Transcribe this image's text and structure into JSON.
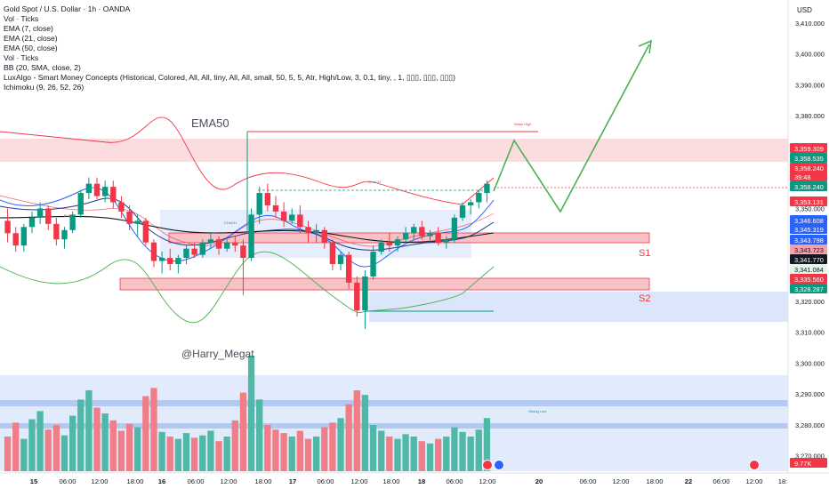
{
  "header": {
    "title": "Gold Spot / U.S. Dollar · 1h · OANDA",
    "indicators": [
      "Vol · Ticks",
      "EMA (7, close)",
      "EMA (21, close)",
      "EMA (50, close)",
      "Vol · Ticks",
      "BB (20, SMA, close, 2)",
      "LuxAlgo - Smart Money Concepts (Historical, Colored, All, All, tiny, All, All, small, 50, 5, 5, Atr, High/Low, 3, 0.1, tiny, , 1, ▯▯▯, ▯▯▯, ▯▯▯)",
      "Ichimoku (9, 26, 52, 26)"
    ]
  },
  "price_scale": {
    "currency": "USD",
    "ticks": [
      "3,410.000",
      "3,400.000",
      "3,390.000",
      "3,380.000",
      "3,370.000",
      "3,360.000",
      "3,350.000",
      "3,340.000",
      "3,330.000",
      "3,320.000",
      "3,310.000",
      "3,300.000",
      "3,290.000",
      "3,280.000",
      "3,270.000"
    ],
    "badges": [
      {
        "text": "3,359.309",
        "color": "#f23645"
      },
      {
        "text": "3,358.535",
        "color": "#089981"
      },
      {
        "text": "3,358.240",
        "color": "#f23645"
      },
      {
        "text": "39:48",
        "color": "#f23645"
      },
      {
        "text": "3,358.240",
        "color": "#089981"
      },
      {
        "text": "3,353.131",
        "color": "#f23645"
      },
      {
        "text": "3,346.608",
        "color": "#2962ff"
      },
      {
        "text": "3,345.319",
        "color": "#2962ff"
      },
      {
        "text": "3,343.798",
        "color": "#2962ff"
      },
      {
        "text": "3,343.723",
        "color": "#f7a0a8"
      },
      {
        "text": "3,341.770",
        "color": "#131722"
      },
      {
        "text": "3,341.084",
        "color": "#e4f5ea"
      },
      {
        "text": "3,335.560",
        "color": "#f23645"
      },
      {
        "text": "3,328.287",
        "color": "#089981"
      },
      {
        "text": "9.77K",
        "color": "#f23645"
      }
    ]
  },
  "time_axis": {
    "labels": [
      "15",
      "06:00",
      "12:00",
      "18:00",
      "16",
      "06:00",
      "12:00",
      "18:00",
      "17",
      "06:00",
      "12:00",
      "18:00",
      "18",
      "06:00",
      "12:00",
      "20",
      "06:00",
      "12:00",
      "18:00",
      "22",
      "06:00",
      "12:00",
      "18:"
    ]
  },
  "annotations": {
    "ema_label": "EMA50",
    "watermark": "@Harry_Megat",
    "s1": "S1",
    "s2": "S2",
    "weak_high": "Weak High",
    "strong_low": "Strong Low",
    "choch_1": "CHoCH",
    "choch_2": "CHoCH",
    "bos": "BOS"
  },
  "colors": {
    "up": "#089981",
    "down": "#f23645",
    "ema7": "#2962ff",
    "ema21": "#1e3a8a",
    "ema50": "#131722",
    "bb": "#f23645",
    "projection": "#4caf50",
    "zone_blue": "#dbe6fb",
    "zone_red": "#f7c1c5"
  },
  "chart_data": {
    "type": "candlestick",
    "symbol": "XAUUSD",
    "timeframe": "1h",
    "ylim": [
      3265,
      3418
    ],
    "candles": [
      [
        3346,
        3350,
        3339,
        3342
      ],
      [
        3342,
        3344,
        3336,
        3338
      ],
      [
        3338,
        3345,
        3336,
        3344
      ],
      [
        3344,
        3349,
        3342,
        3347
      ],
      [
        3347,
        3352,
        3345,
        3350
      ],
      [
        3350,
        3351,
        3343,
        3345
      ],
      [
        3345,
        3347,
        3338,
        3340
      ],
      [
        3340,
        3344,
        3337,
        3343
      ],
      [
        3343,
        3349,
        3342,
        3348
      ],
      [
        3348,
        3356,
        3347,
        3355
      ],
      [
        3355,
        3360,
        3353,
        3358
      ],
      [
        3358,
        3360,
        3353,
        3354
      ],
      [
        3354,
        3359,
        3352,
        3357
      ],
      [
        3357,
        3359,
        3350,
        3352
      ],
      [
        3352,
        3354,
        3347,
        3349
      ],
      [
        3349,
        3351,
        3343,
        3345
      ],
      [
        3345,
        3348,
        3341,
        3346
      ],
      [
        3346,
        3347,
        3338,
        3339
      ],
      [
        3339,
        3340,
        3331,
        3333
      ],
      [
        3333,
        3336,
        3329,
        3334
      ],
      [
        3334,
        3337,
        3330,
        3332
      ],
      [
        3332,
        3335,
        3329,
        3334
      ],
      [
        3334,
        3338,
        3332,
        3337
      ],
      [
        3337,
        3339,
        3334,
        3335
      ],
      [
        3335,
        3340,
        3334,
        3339
      ],
      [
        3339,
        3342,
        3337,
        3340
      ],
      [
        3340,
        3341,
        3335,
        3337
      ],
      [
        3337,
        3340,
        3336,
        3339
      ],
      [
        3339,
        3341,
        3336,
        3338
      ],
      [
        3338,
        3340,
        3322,
        3334
      ],
      [
        3334,
        3350,
        3333,
        3348
      ],
      [
        3348,
        3357,
        3345,
        3355
      ],
      [
        3355,
        3358,
        3349,
        3351
      ],
      [
        3351,
        3354,
        3347,
        3349
      ],
      [
        3349,
        3352,
        3344,
        3346
      ],
      [
        3346,
        3350,
        3345,
        3348
      ],
      [
        3348,
        3351,
        3342,
        3344
      ],
      [
        3344,
        3346,
        3339,
        3342
      ],
      [
        3342,
        3345,
        3339,
        3343
      ],
      [
        3343,
        3344,
        3337,
        3339
      ],
      [
        3339,
        3340,
        3330,
        3332
      ],
      [
        3332,
        3336,
        3330,
        3335
      ],
      [
        3335,
        3336,
        3324,
        3326
      ],
      [
        3326,
        3328,
        3315,
        3317
      ],
      [
        3317,
        3330,
        3311,
        3328
      ],
      [
        3328,
        3338,
        3327,
        3336
      ],
      [
        3336,
        3340,
        3335,
        3339
      ],
      [
        3339,
        3342,
        3336,
        3338
      ],
      [
        3338,
        3341,
        3336,
        3340
      ],
      [
        3340,
        3344,
        3339,
        3342
      ],
      [
        3342,
        3345,
        3340,
        3344
      ],
      [
        3344,
        3346,
        3340,
        3341
      ],
      [
        3341,
        3343,
        3339,
        3342
      ],
      [
        3342,
        3344,
        3338,
        3339
      ],
      [
        3339,
        3341,
        3337,
        3340
      ],
      [
        3340,
        3348,
        3339,
        3347
      ],
      [
        3347,
        3352,
        3346,
        3351
      ],
      [
        3351,
        3353,
        3348,
        3352
      ],
      [
        3352,
        3356,
        3350,
        3355
      ],
      [
        3355,
        3359,
        3352,
        3358
      ]
    ],
    "volume": [
      30,
      42,
      28,
      45,
      52,
      36,
      40,
      31,
      48,
      62,
      70,
      55,
      50,
      44,
      35,
      41,
      38,
      65,
      72,
      34,
      30,
      28,
      33,
      29,
      31,
      35,
      26,
      30,
      44,
      68,
      100,
      62,
      40,
      36,
      33,
      30,
      35,
      28,
      30,
      38,
      42,
      46,
      58,
      70,
      66,
      40,
      35,
      30,
      28,
      32,
      30,
      26,
      24,
      28,
      30,
      38,
      34,
      30,
      36,
      46
    ],
    "projection": [
      [
        3358,
        3373,
        3350,
        3406
      ]
    ],
    "levels": {
      "weak_high": 3378,
      "strong_low": 3285
    },
    "zones": {
      "s1": [
        3342,
        3345
      ],
      "s2": [
        3330,
        3333
      ]
    }
  }
}
